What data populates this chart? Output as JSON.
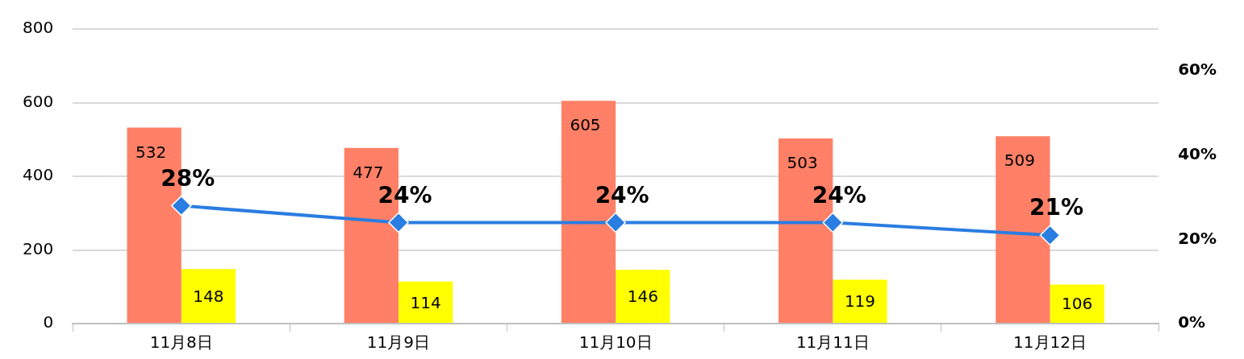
{
  "chart_data": {
    "type": "bar",
    "categories": [
      "11月8日",
      "11月9日",
      "11月10日",
      "11月11日",
      "11月12日"
    ],
    "series": [
      {
        "color": "#ff8066",
        "values": [
          532,
          477,
          605,
          503,
          509
        ]
      },
      {
        "color": "#ffff00",
        "values": [
          148,
          114,
          146,
          119,
          106
        ]
      },
      {
        "type": "line",
        "axis": "y2",
        "color": "#2a7de1",
        "marker": "diamond",
        "values": [
          28,
          24,
          24,
          24,
          21
        ],
        "value_labels": [
          "28%",
          "24%",
          "24%",
          "24%",
          "21%"
        ]
      }
    ],
    "ylim": [
      0,
      800
    ],
    "yticks": [
      0,
      200,
      400,
      600,
      800
    ],
    "y2lim": [
      0,
      70
    ],
    "y2ticks": [
      {
        "value": 0,
        "label": "0%"
      },
      {
        "value": 20,
        "label": "20%"
      },
      {
        "value": 40,
        "label": "40%"
      },
      {
        "value": 60,
        "label": "60%"
      }
    ],
    "data_labels": true,
    "grid": "y",
    "legend": false
  }
}
